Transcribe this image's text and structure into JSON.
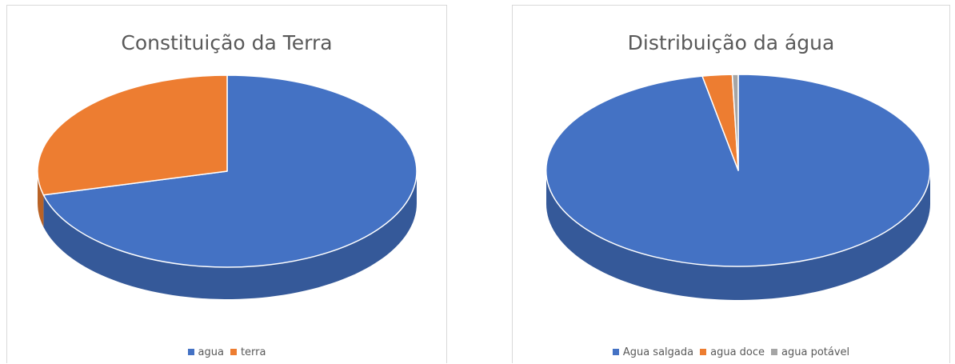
{
  "chart_data": [
    {
      "type": "pie",
      "title": "Constituição da Terra",
      "categories": [
        "agua",
        "terra"
      ],
      "values": [
        71,
        29
      ],
      "colors": [
        "#4472c4",
        "#ed7d31"
      ],
      "legend_position": "bottom",
      "style": "3d"
    },
    {
      "type": "pie",
      "title": "Distribuição da água",
      "categories": [
        "Agua salgada",
        "agua doce",
        "agua potável"
      ],
      "values": [
        97,
        2.5,
        0.5
      ],
      "colors": [
        "#4472c4",
        "#ed7d31",
        "#a5a5a5"
      ],
      "legend_position": "bottom",
      "style": "3d"
    }
  ]
}
